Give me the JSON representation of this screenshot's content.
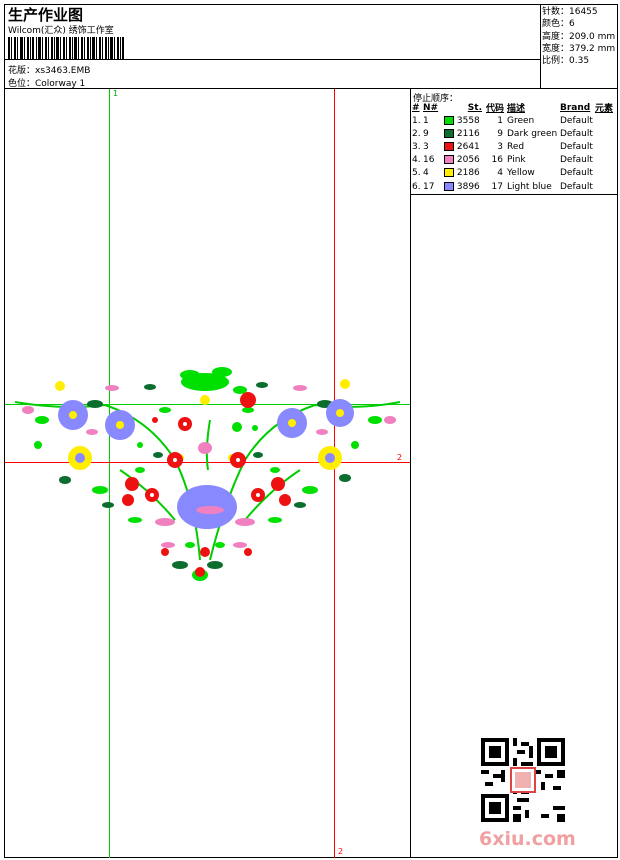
{
  "header": {
    "title": "生产作业图",
    "studio": "Wilcom(汇众) 绣饰工作室",
    "design_label": "花版：xs3463.EMB",
    "colorway_label": "色位：Colorway 1"
  },
  "stats": {
    "stitches": "针数：16455",
    "colors": "颜色：6",
    "height": "高度：209.0 mm",
    "width": "宽度：379.2 mm",
    "scale": "比例：0.35"
  },
  "stop_sequence": {
    "title": "停止顺序：",
    "headers": [
      "#",
      "N#",
      "St.",
      "代码",
      "描述",
      "Brand",
      "元素"
    ],
    "rows": [
      {
        "idx": "1.",
        "n": "1",
        "color": "#00e000",
        "st": "3558",
        "code": "1",
        "desc": "Green",
        "brand": "Default"
      },
      {
        "idx": "2.",
        "n": "9",
        "color": "#0b6e2e",
        "st": "2116",
        "code": "9",
        "desc": "Dark green",
        "brand": "Default"
      },
      {
        "idx": "3.",
        "n": "3",
        "color": "#ee1111",
        "st": "2641",
        "code": "3",
        "desc": "Red",
        "brand": "Default"
      },
      {
        "idx": "4.",
        "n": "16",
        "color": "#f080c0",
        "st": "2056",
        "code": "16",
        "desc": "Pink",
        "brand": "Default"
      },
      {
        "idx": "5.",
        "n": "4",
        "color": "#ffee00",
        "st": "2186",
        "code": "4",
        "desc": "Yellow",
        "brand": "Default"
      },
      {
        "idx": "6.",
        "n": "17",
        "color": "#8888ff",
        "st": "3896",
        "code": "17",
        "desc": "Light blue",
        "brand": "Default"
      }
    ]
  },
  "guides": {
    "green_label": "1",
    "red_label_right": "2",
    "red_label_bottom": "2"
  },
  "logo": {
    "text": "6xiu.com"
  }
}
